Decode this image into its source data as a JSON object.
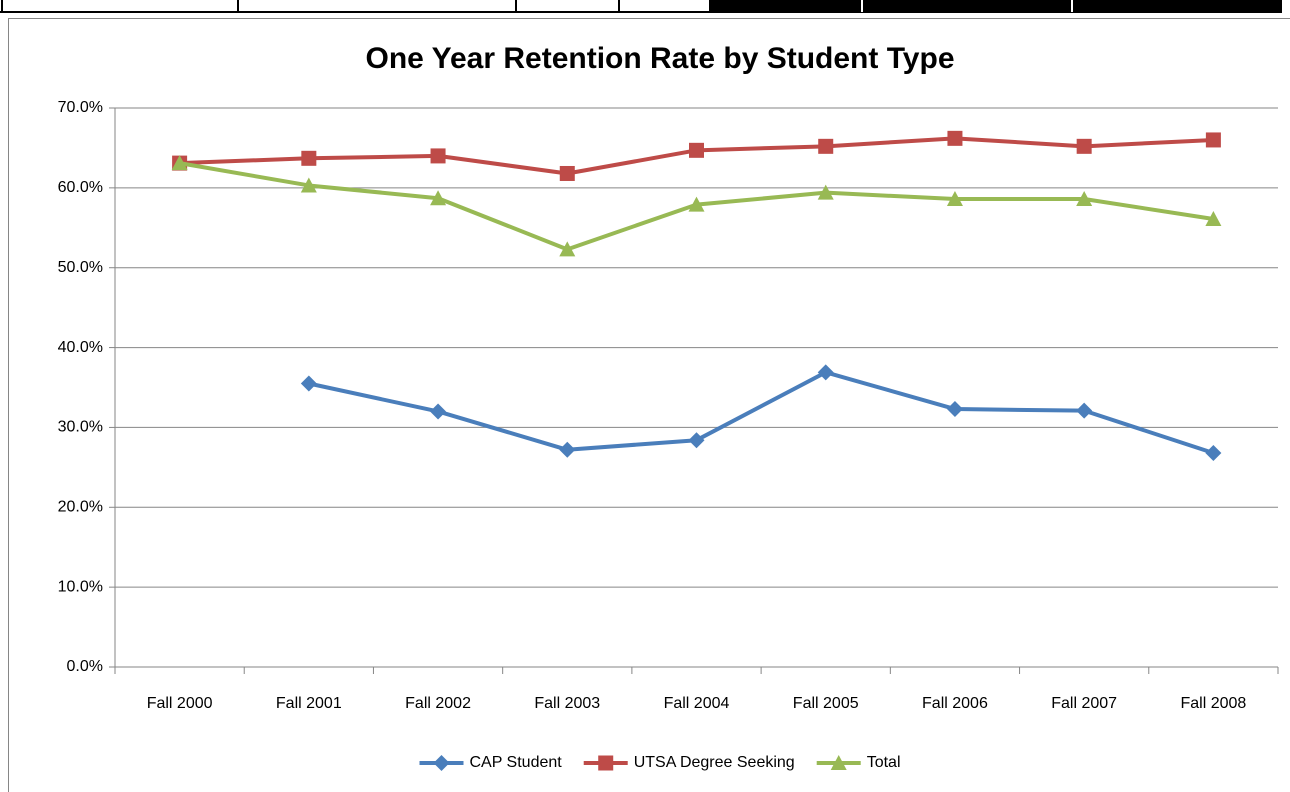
{
  "chart_data": {
    "type": "line",
    "title": "One Year Retention Rate by Student Type",
    "categories": [
      "Fall 2000",
      "Fall 2001",
      "Fall 2002",
      "Fall 2003",
      "Fall 2004",
      "Fall 2005",
      "Fall 2006",
      "Fall 2007",
      "Fall 2008"
    ],
    "series": [
      {
        "name": "CAP Student",
        "color": "#4a7ebb",
        "marker": "diamond",
        "values": [
          null,
          35.5,
          32.0,
          27.2,
          28.4,
          36.9,
          32.3,
          32.1,
          26.8
        ]
      },
      {
        "name": "UTSA Degree Seeking",
        "color": "#be4b48",
        "marker": "square",
        "values": [
          63.1,
          63.7,
          64.0,
          61.8,
          64.7,
          65.2,
          66.2,
          65.2,
          66.0
        ]
      },
      {
        "name": "Total",
        "color": "#98b954",
        "marker": "triangle",
        "values": [
          63.1,
          60.3,
          58.7,
          52.3,
          57.9,
          59.4,
          58.6,
          58.6,
          56.1
        ]
      }
    ],
    "ylim": [
      0,
      70
    ],
    "yticks": [
      {
        "value": 0,
        "label": "0.0%"
      },
      {
        "value": 10,
        "label": "10.0%"
      },
      {
        "value": 20,
        "label": "20.0%"
      },
      {
        "value": 30,
        "label": "30.0%"
      },
      {
        "value": 40,
        "label": "40.0%"
      },
      {
        "value": 50,
        "label": "50.0%"
      },
      {
        "value": 60,
        "label": "60.0%"
      },
      {
        "value": 70,
        "label": "70.0%"
      }
    ],
    "grid": true,
    "legend": "bottom"
  }
}
